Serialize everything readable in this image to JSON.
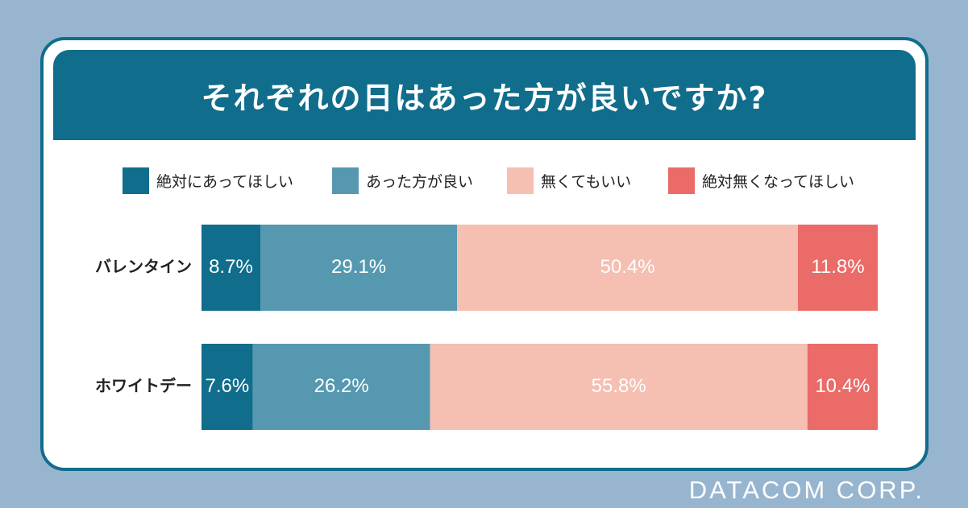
{
  "title": "それぞれの日はあった方が良いですか?",
  "footer": "DATACOM CORP.",
  "legend": [
    {
      "label": "絶対にあってほしい",
      "color": "#106d8c"
    },
    {
      "label": "あった方が良い",
      "color": "#5598b0"
    },
    {
      "label": "無くてもいい",
      "color": "#f5bfb2"
    },
    {
      "label": "絶対無くなってほしい",
      "color": "#ea6b67"
    }
  ],
  "chart_data": {
    "type": "bar",
    "orientation": "horizontal-stacked-100",
    "categories": [
      "バレンタイン",
      "ホワイトデー"
    ],
    "series": [
      {
        "name": "絶対にあってほしい",
        "values": [
          8.7,
          7.6
        ],
        "labels": [
          "8.7%",
          "7.6%"
        ],
        "color": "#106d8c"
      },
      {
        "name": "あった方が良い",
        "values": [
          29.1,
          26.2
        ],
        "labels": [
          "29.1%",
          "26.2%"
        ],
        "color": "#5598b0"
      },
      {
        "name": "無くてもいい",
        "values": [
          50.4,
          55.8
        ],
        "labels": [
          "50.4%",
          "55.8%"
        ],
        "color": "#f5bfb2"
      },
      {
        "name": "絶対無くなってほしい",
        "values": [
          11.8,
          10.4
        ],
        "labels": [
          "11.8%",
          "10.4%"
        ],
        "color": "#ea6b67"
      }
    ],
    "xlim": [
      0,
      100
    ],
    "legend_position": "top"
  }
}
